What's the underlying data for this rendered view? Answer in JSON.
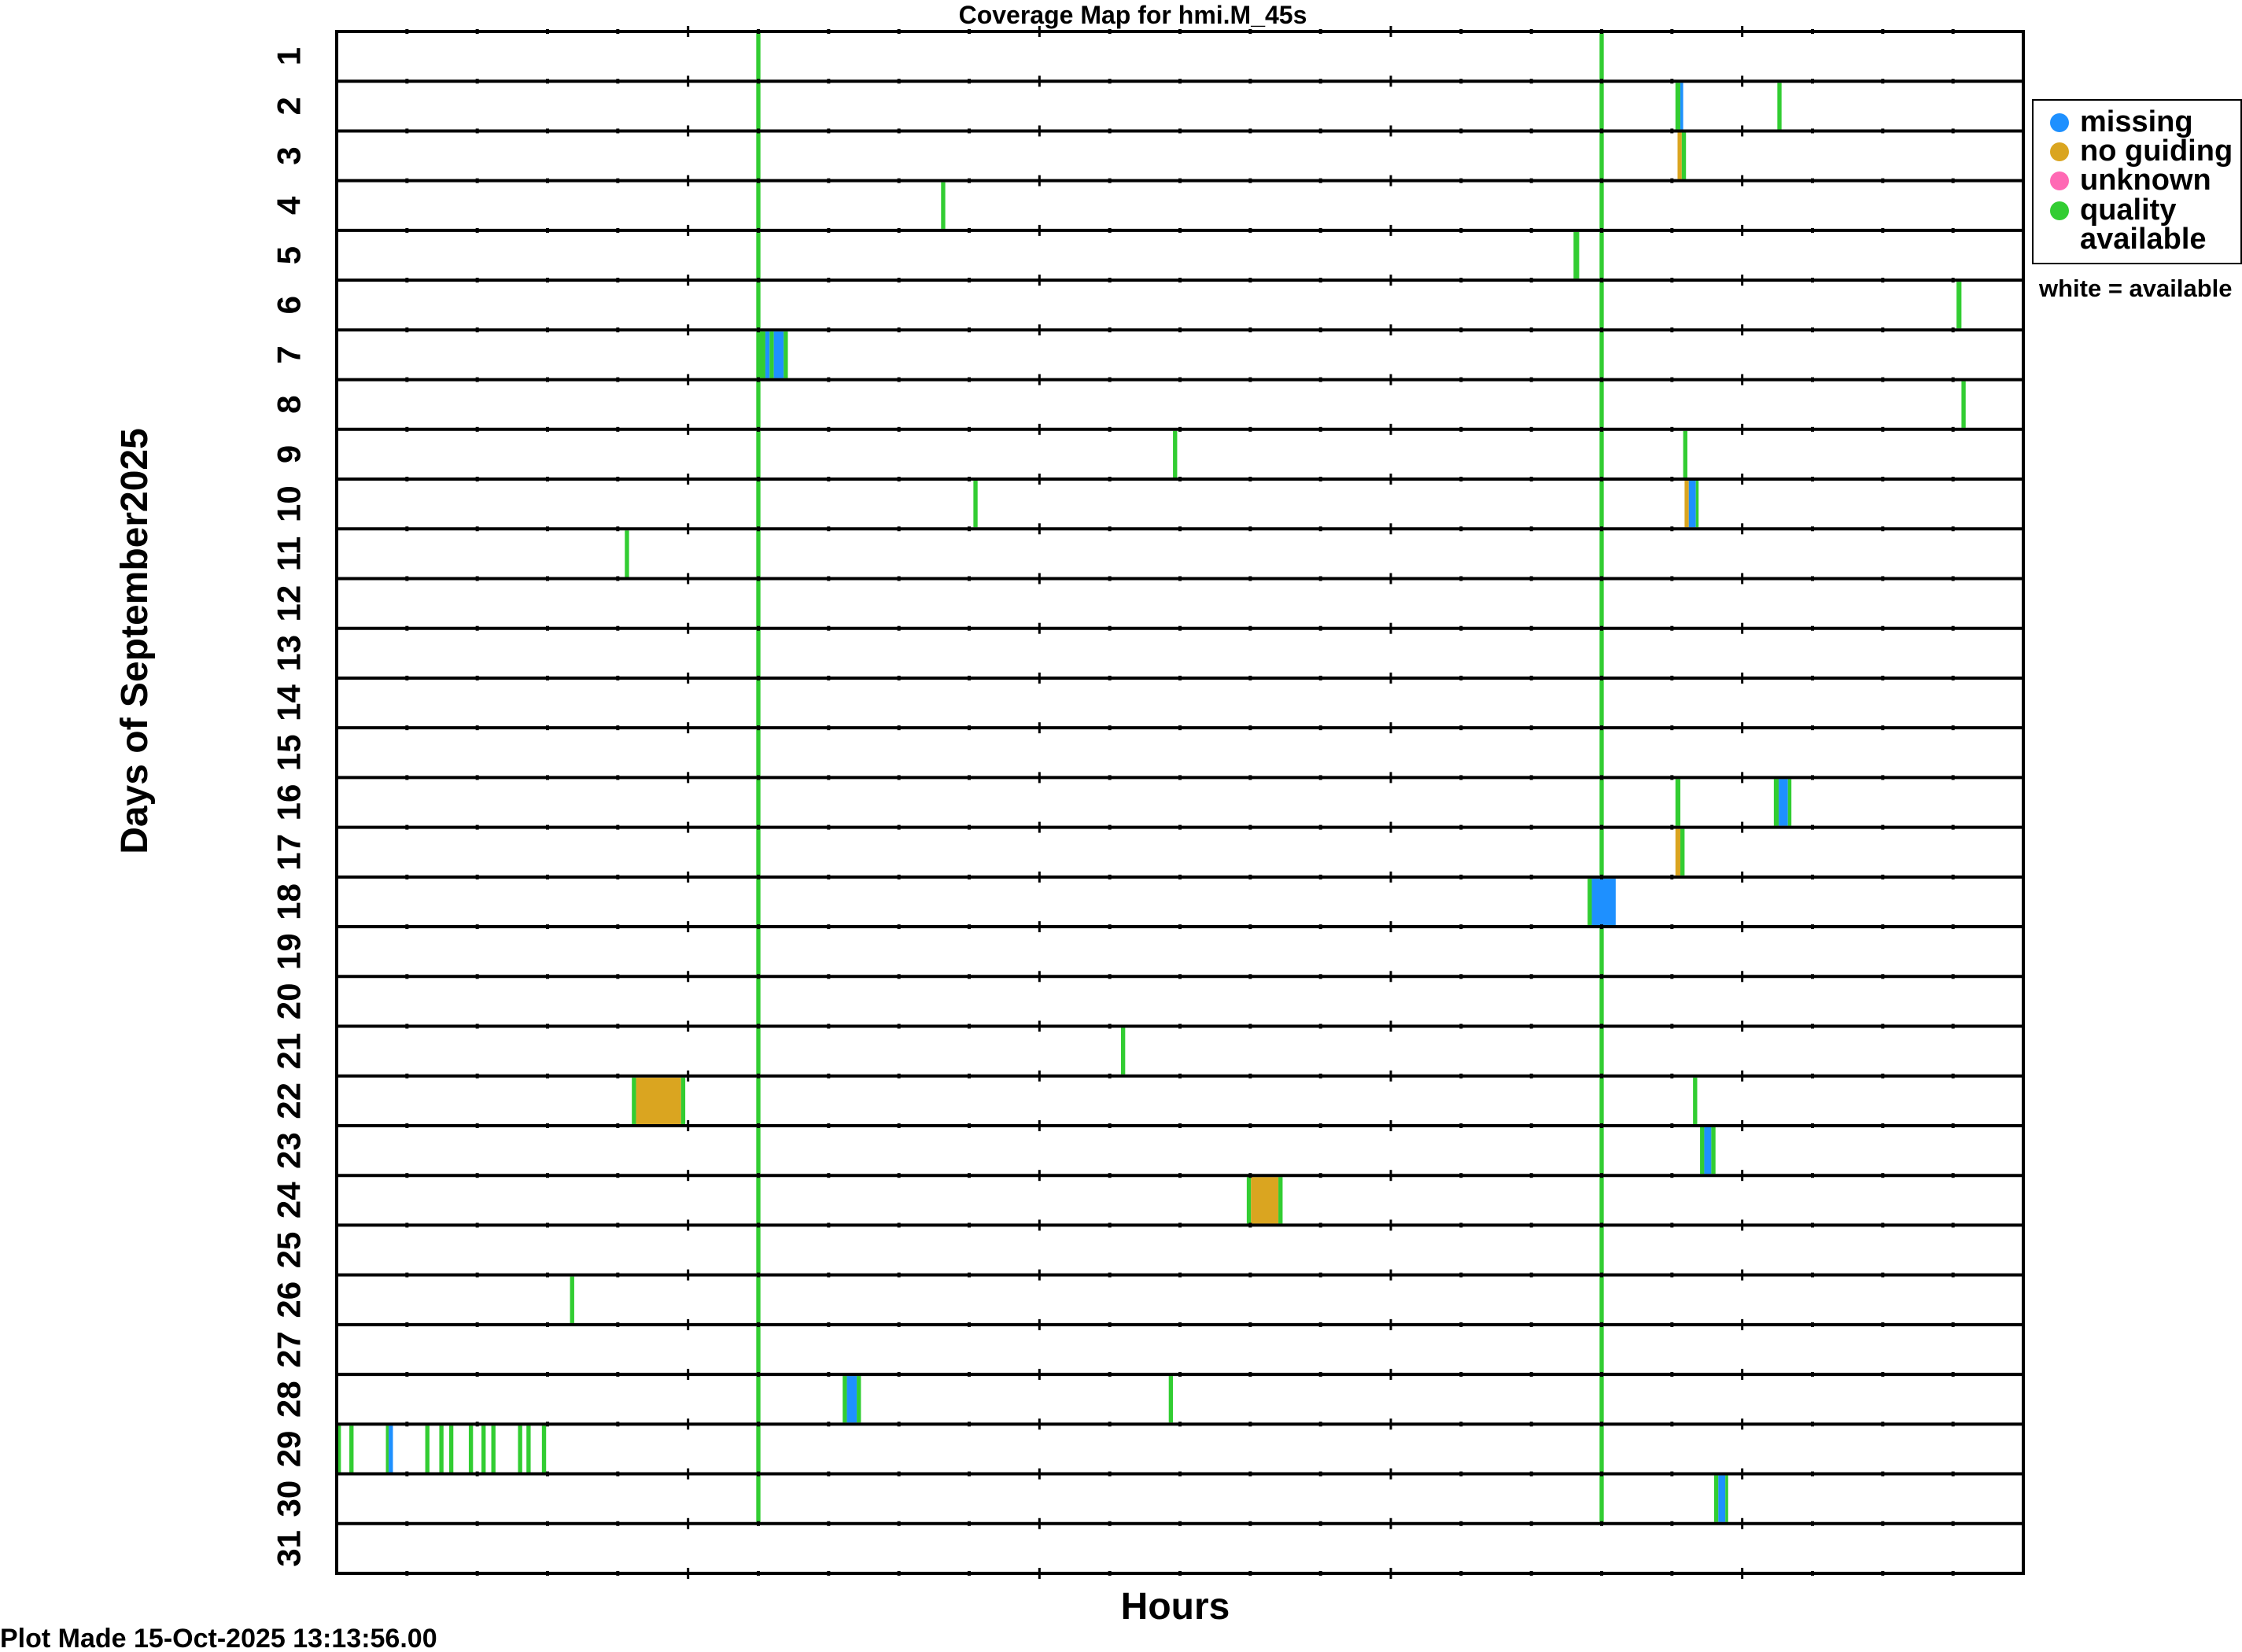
{
  "chart_data": {
    "type": "heatmap",
    "title": "Coverage Map for hmi.M_45s",
    "xlabel": "Hours",
    "ylabel": "Days of September2025",
    "xlim": [
      0,
      24
    ],
    "x_major_ticks": [
      5,
      10,
      15,
      20
    ],
    "x_minor_step": 1,
    "days": [
      "1",
      "2",
      "3",
      "4",
      "5",
      "6",
      "7",
      "8",
      "9",
      "10",
      "11",
      "12",
      "13",
      "14",
      "15",
      "16",
      "17",
      "18",
      "19",
      "20",
      "21",
      "22",
      "23",
      "24",
      "25",
      "26",
      "27",
      "28",
      "29",
      "30",
      "31"
    ],
    "colors": {
      "missing": "#1e90ff",
      "no_guiding": "#daa520",
      "unknown": "#ff69b4",
      "quality": "#32cd32",
      "available": "#ffffff"
    },
    "legend": {
      "placement": "right",
      "entries": [
        {
          "key": "missing",
          "label": "missing"
        },
        {
          "key": "no_guiding",
          "label": "no guiding"
        },
        {
          "key": "unknown",
          "label": "unknown"
        },
        {
          "key": "quality",
          "label": "quality",
          "label2": "available"
        }
      ],
      "note": "white = available"
    },
    "footer": "Plot Made 15-Oct-2025 13:13:56.00",
    "recurring_quality_hours": [
      6.0,
      18.0
    ],
    "recurring_days_range": [
      1,
      30
    ],
    "segments": [
      {
        "day": 2,
        "start": 19.05,
        "end": 19.12,
        "status": "quality"
      },
      {
        "day": 2,
        "start": 19.12,
        "end": 19.16,
        "status": "missing"
      },
      {
        "day": 2,
        "start": 20.5,
        "end": 20.56,
        "status": "quality"
      },
      {
        "day": 3,
        "start": 19.08,
        "end": 19.14,
        "status": "no_guiding"
      },
      {
        "day": 3,
        "start": 19.14,
        "end": 19.2,
        "status": "quality"
      },
      {
        "day": 4,
        "start": 8.6,
        "end": 8.66,
        "status": "quality"
      },
      {
        "day": 5,
        "start": 17.6,
        "end": 17.68,
        "status": "quality"
      },
      {
        "day": 6,
        "start": 23.05,
        "end": 23.12,
        "status": "quality"
      },
      {
        "day": 7,
        "start": 6.02,
        "end": 6.1,
        "status": "quality"
      },
      {
        "day": 7,
        "start": 6.1,
        "end": 6.16,
        "status": "missing"
      },
      {
        "day": 7,
        "start": 6.16,
        "end": 6.22,
        "status": "quality"
      },
      {
        "day": 7,
        "start": 6.22,
        "end": 6.36,
        "status": "missing"
      },
      {
        "day": 7,
        "start": 6.36,
        "end": 6.42,
        "status": "quality"
      },
      {
        "day": 8,
        "start": 23.12,
        "end": 23.18,
        "status": "quality"
      },
      {
        "day": 9,
        "start": 11.9,
        "end": 11.96,
        "status": "quality"
      },
      {
        "day": 9,
        "start": 19.16,
        "end": 19.22,
        "status": "quality"
      },
      {
        "day": 10,
        "start": 9.06,
        "end": 9.12,
        "status": "quality"
      },
      {
        "day": 10,
        "start": 19.18,
        "end": 19.24,
        "status": "no_guiding"
      },
      {
        "day": 10,
        "start": 19.24,
        "end": 19.34,
        "status": "missing"
      },
      {
        "day": 10,
        "start": 19.34,
        "end": 19.38,
        "status": "quality"
      },
      {
        "day": 11,
        "start": 4.1,
        "end": 4.16,
        "status": "quality"
      },
      {
        "day": 16,
        "start": 19.05,
        "end": 19.12,
        "status": "quality"
      },
      {
        "day": 16,
        "start": 20.45,
        "end": 20.52,
        "status": "quality"
      },
      {
        "day": 16,
        "start": 20.52,
        "end": 20.65,
        "status": "missing"
      },
      {
        "day": 16,
        "start": 20.65,
        "end": 20.7,
        "status": "quality"
      },
      {
        "day": 17,
        "start": 19.05,
        "end": 19.12,
        "status": "no_guiding"
      },
      {
        "day": 17,
        "start": 19.12,
        "end": 19.18,
        "status": "quality"
      },
      {
        "day": 18,
        "start": 17.8,
        "end": 17.86,
        "status": "quality"
      },
      {
        "day": 18,
        "start": 17.86,
        "end": 18.2,
        "status": "missing"
      },
      {
        "day": 21,
        "start": 11.16,
        "end": 11.22,
        "status": "quality"
      },
      {
        "day": 22,
        "start": 4.2,
        "end": 4.26,
        "status": "quality"
      },
      {
        "day": 22,
        "start": 4.26,
        "end": 4.9,
        "status": "no_guiding"
      },
      {
        "day": 22,
        "start": 4.9,
        "end": 4.96,
        "status": "quality"
      },
      {
        "day": 22,
        "start": 19.3,
        "end": 19.36,
        "status": "quality"
      },
      {
        "day": 23,
        "start": 19.4,
        "end": 19.46,
        "status": "quality"
      },
      {
        "day": 23,
        "start": 19.46,
        "end": 19.56,
        "status": "missing"
      },
      {
        "day": 23,
        "start": 19.56,
        "end": 19.62,
        "status": "quality"
      },
      {
        "day": 24,
        "start": 12.95,
        "end": 13.01,
        "status": "quality"
      },
      {
        "day": 24,
        "start": 13.01,
        "end": 13.4,
        "status": "no_guiding"
      },
      {
        "day": 24,
        "start": 13.4,
        "end": 13.46,
        "status": "quality"
      },
      {
        "day": 26,
        "start": 3.32,
        "end": 3.38,
        "status": "quality"
      },
      {
        "day": 28,
        "start": 7.2,
        "end": 7.26,
        "status": "quality"
      },
      {
        "day": 28,
        "start": 7.26,
        "end": 7.4,
        "status": "missing"
      },
      {
        "day": 28,
        "start": 7.4,
        "end": 7.46,
        "status": "quality"
      },
      {
        "day": 28,
        "start": 11.84,
        "end": 11.9,
        "status": "quality"
      },
      {
        "day": 29,
        "start": 0.0,
        "end": 0.06,
        "status": "quality"
      },
      {
        "day": 29,
        "start": 0.18,
        "end": 0.24,
        "status": "quality"
      },
      {
        "day": 29,
        "start": 0.7,
        "end": 0.74,
        "status": "quality"
      },
      {
        "day": 29,
        "start": 0.74,
        "end": 0.8,
        "status": "missing"
      },
      {
        "day": 29,
        "start": 1.26,
        "end": 1.32,
        "status": "quality"
      },
      {
        "day": 29,
        "start": 1.46,
        "end": 1.52,
        "status": "quality"
      },
      {
        "day": 29,
        "start": 1.6,
        "end": 1.66,
        "status": "quality"
      },
      {
        "day": 29,
        "start": 1.88,
        "end": 1.94,
        "status": "quality"
      },
      {
        "day": 29,
        "start": 2.06,
        "end": 2.12,
        "status": "quality"
      },
      {
        "day": 29,
        "start": 2.2,
        "end": 2.26,
        "status": "quality"
      },
      {
        "day": 29,
        "start": 2.58,
        "end": 2.64,
        "status": "quality"
      },
      {
        "day": 29,
        "start": 2.7,
        "end": 2.76,
        "status": "quality"
      },
      {
        "day": 29,
        "start": 2.92,
        "end": 2.98,
        "status": "quality"
      },
      {
        "day": 30,
        "start": 19.6,
        "end": 19.66,
        "status": "quality"
      },
      {
        "day": 30,
        "start": 19.66,
        "end": 19.76,
        "status": "missing"
      },
      {
        "day": 30,
        "start": 19.76,
        "end": 19.8,
        "status": "quality"
      }
    ]
  }
}
